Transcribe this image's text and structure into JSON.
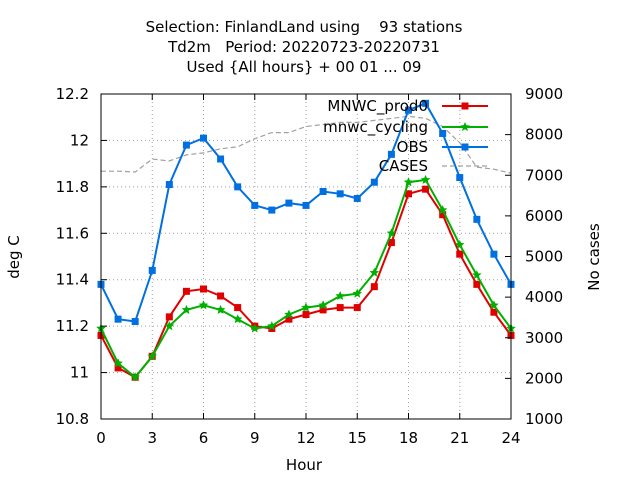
{
  "chart_data": {
    "type": "line",
    "title_lines": [
      "Selection: FinlandLand using    93 stations",
      "Td2m   Period: 20220723-20220731",
      "Used {All hours} + 00 01 ... 09"
    ],
    "xlabel": "Hour",
    "ylabel": "deg C",
    "y2label": "No cases",
    "xlim": [
      0,
      24
    ],
    "ylim": [
      10.8,
      12.2
    ],
    "y2lim": [
      1000,
      9000
    ],
    "xticks": [
      0,
      3,
      6,
      9,
      12,
      15,
      18,
      21,
      24
    ],
    "xtick_labels": [
      "0",
      "3",
      "6",
      "9",
      "12",
      "15",
      "18",
      "21",
      "24"
    ],
    "yticks": [
      10.8,
      11,
      11.2,
      11.4,
      11.6,
      11.8,
      12,
      12.2
    ],
    "ytick_labels": [
      "10.8",
      "11",
      "11.2",
      "11.4",
      "11.6",
      "11.8",
      "12",
      "12.2"
    ],
    "y2ticks": [
      1000,
      2000,
      3000,
      4000,
      5000,
      6000,
      7000,
      8000,
      9000
    ],
    "y2tick_labels": [
      "1000",
      "2000",
      "3000",
      "4000",
      "5000",
      "6000",
      "7000",
      "8000",
      "9000"
    ],
    "legend_position": "top-right",
    "x": [
      0,
      1,
      2,
      3,
      4,
      5,
      6,
      7,
      8,
      9,
      10,
      11,
      12,
      13,
      14,
      15,
      16,
      17,
      18,
      19,
      20,
      21,
      22,
      23,
      24
    ],
    "series": [
      {
        "name": "MNWC_prod0",
        "axis": "left",
        "color": "#e00000",
        "marker": "square",
        "values": [
          11.16,
          11.02,
          10.98,
          11.07,
          11.24,
          11.35,
          11.36,
          11.33,
          11.28,
          11.2,
          11.19,
          11.23,
          11.25,
          11.27,
          11.28,
          11.28,
          11.37,
          11.56,
          11.77,
          11.79,
          11.68,
          11.51,
          11.38,
          11.26,
          11.16
        ]
      },
      {
        "name": "mnwc_cycling",
        "axis": "left",
        "color": "#00b000",
        "marker": "star",
        "values": [
          11.19,
          11.04,
          10.98,
          11.07,
          11.2,
          11.27,
          11.29,
          11.27,
          11.23,
          11.19,
          11.2,
          11.25,
          11.28,
          11.29,
          11.33,
          11.34,
          11.43,
          11.6,
          11.82,
          11.83,
          11.7,
          11.55,
          11.42,
          11.29,
          11.19
        ]
      },
      {
        "name": "OBS",
        "axis": "left",
        "color": "#0070e0",
        "marker": "square",
        "values": [
          11.38,
          11.23,
          11.22,
          11.44,
          11.81,
          11.98,
          12.01,
          11.92,
          11.8,
          11.72,
          11.7,
          11.73,
          11.72,
          11.78,
          11.77,
          11.75,
          11.82,
          11.94,
          12.13,
          12.16,
          12.03,
          11.84,
          11.66,
          11.51,
          11.38
        ]
      },
      {
        "name": "CASES",
        "axis": "right",
        "color": "#a0a0a0",
        "dashed": true,
        "values": [
          7100,
          7100,
          7080,
          7400,
          7350,
          7500,
          7550,
          7650,
          7700,
          7900,
          8050,
          8050,
          8200,
          8250,
          8300,
          8300,
          8350,
          8400,
          8450,
          8400,
          8200,
          7800,
          7200,
          7150,
          7050
        ]
      }
    ]
  }
}
